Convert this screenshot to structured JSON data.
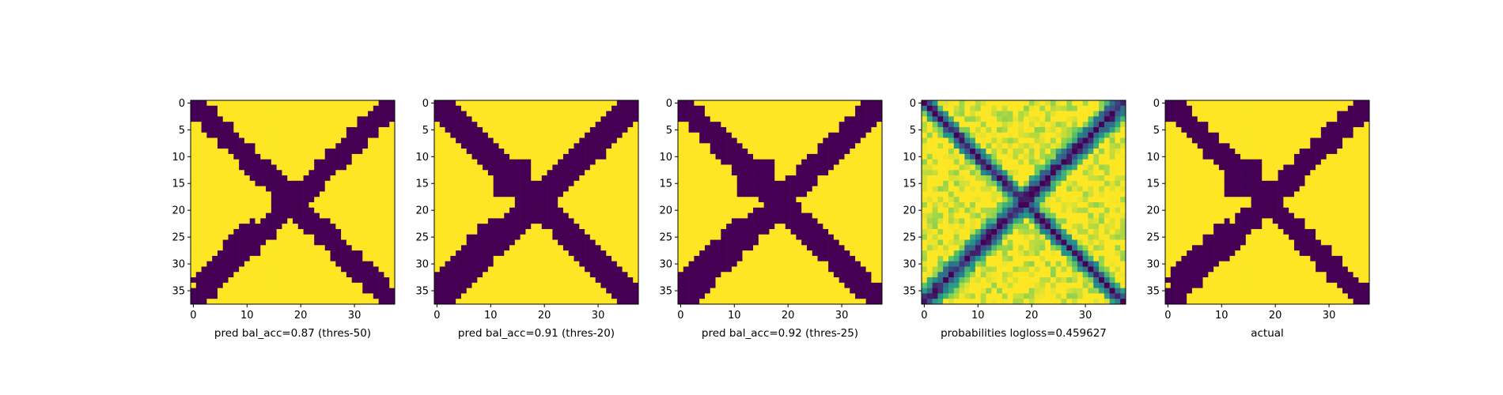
{
  "chart_data": [
    {
      "type": "heatmap",
      "title": "",
      "xlabel": "pred bal_acc=0.87 (thres-50)",
      "ylabel": "",
      "size": 38,
      "xlim": [
        -0.5,
        37.5
      ],
      "ylim": [
        37.5,
        -0.5
      ],
      "xticks": [
        0,
        10,
        20,
        30
      ],
      "yticks": [
        0,
        5,
        10,
        15,
        20,
        25,
        30,
        35
      ],
      "colormap": "viridis",
      "value_range": [
        0,
        1
      ],
      "mask": {
        "diag_width": 3.0,
        "anti_width": 2.8,
        "lower_left_spread": 2.2,
        "upper_right_spread": 1.4
      }
    },
    {
      "type": "heatmap",
      "title": "",
      "xlabel": "pred bal_acc=0.91 (thres-20)",
      "ylabel": "",
      "size": 38,
      "xlim": [
        -0.5,
        37.5
      ],
      "ylim": [
        37.5,
        -0.5
      ],
      "xticks": [
        0,
        10,
        20,
        30
      ],
      "yticks": [
        0,
        5,
        10,
        15,
        20,
        25,
        30,
        35
      ],
      "colormap": "viridis",
      "value_range": [
        0,
        1
      ],
      "mask": {
        "diag_width": 3.6,
        "anti_width": 3.6,
        "lower_left_spread": 3.2,
        "upper_right_spread": 2.2
      }
    },
    {
      "type": "heatmap",
      "title": "",
      "xlabel": "pred bal_acc=0.92 (thres-25)",
      "ylabel": "",
      "size": 38,
      "xlim": [
        -0.5,
        37.5
      ],
      "ylim": [
        37.5,
        -0.5
      ],
      "xticks": [
        0,
        10,
        20,
        30
      ],
      "yticks": [
        0,
        5,
        10,
        15,
        20,
        25,
        30,
        35
      ],
      "colormap": "viridis",
      "value_range": [
        0,
        1
      ],
      "mask": {
        "diag_width": 3.4,
        "anti_width": 3.4,
        "lower_left_spread": 2.8,
        "upper_right_spread": 2.0
      }
    },
    {
      "type": "heatmap",
      "title": "",
      "xlabel": "probabilities logloss=0.459627",
      "ylabel": "",
      "size": 38,
      "xlim": [
        -0.5,
        37.5
      ],
      "ylim": [
        37.5,
        -0.5
      ],
      "xticks": [
        0,
        10,
        20,
        30
      ],
      "yticks": [
        0,
        5,
        10,
        15,
        20,
        25,
        30,
        35
      ],
      "colormap": "viridis",
      "value_range": [
        0,
        1
      ],
      "mask": {
        "diag_width": 2.6,
        "anti_width": 3.2,
        "lower_left_spread": 2.6,
        "upper_right_spread": 1.8,
        "continuous": true
      }
    },
    {
      "type": "heatmap",
      "title": "",
      "xlabel": "actual",
      "ylabel": "",
      "size": 38,
      "xlim": [
        -0.5,
        37.5
      ],
      "ylim": [
        37.5,
        -0.5
      ],
      "xticks": [
        0,
        10,
        20,
        30
      ],
      "yticks": [
        0,
        5,
        10,
        15,
        20,
        25,
        30,
        35
      ],
      "colormap": "viridis",
      "value_range": [
        0,
        1
      ],
      "mask": {
        "diag_width": 3.0,
        "anti_width": 3.0,
        "lower_left_spread": 2.4,
        "upper_right_spread": 1.6
      }
    }
  ],
  "colors": {
    "low": "#440154",
    "high": "#fde725",
    "axis": "#000000"
  }
}
